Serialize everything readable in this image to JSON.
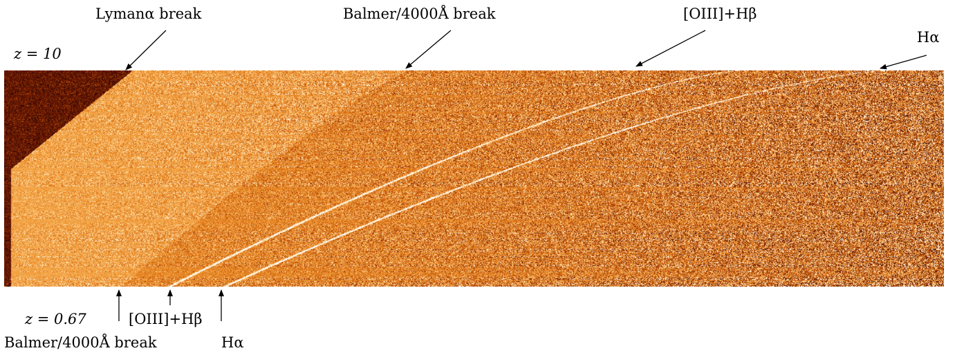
{
  "top_annotations": {
    "lyman_break": "Lymanα break",
    "balmer_break": "Balmer/4000Å break",
    "oiii_hbeta": "[OIII]+Hβ",
    "halpha": "Hα"
  },
  "bottom_annotations": {
    "balmer_break": "Balmer/4000Å break",
    "oiii_hbeta": "[OIII]+Hβ",
    "halpha": "Hα"
  },
  "redshift_labels": {
    "top": "z = 10",
    "bottom": "z = 0.67"
  },
  "image": {
    "description_icon": "spectra-stack-image",
    "colormap": [
      "#2a0500",
      "#5a1204",
      "#9a3304",
      "#c85a0c",
      "#e4801c",
      "#f5a84a",
      "#ffe0a8",
      "#ffffff"
    ]
  }
}
